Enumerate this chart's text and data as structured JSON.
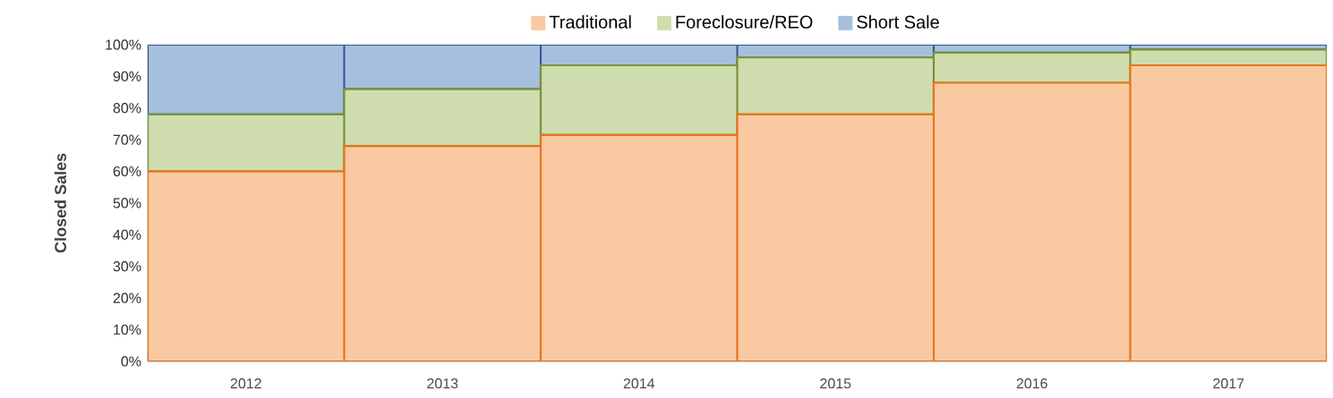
{
  "chart_data": {
    "type": "bar",
    "stacked": true,
    "ylabel": "Closed Sales",
    "categories": [
      "2012",
      "2013",
      "2014",
      "2015",
      "2016",
      "2017"
    ],
    "series": [
      {
        "name": "Traditional",
        "color": "#f9c9a2",
        "values": [
          60,
          68,
          71.5,
          78,
          88,
          93.5
        ]
      },
      {
        "name": "Foreclosure/REO",
        "color": "#cfddae",
        "values": [
          18,
          18,
          22,
          18,
          9.5,
          5
        ]
      },
      {
        "name": "Short Sale",
        "color": "#a7bfdf",
        "values": [
          22,
          14,
          6.5,
          4,
          2.5,
          1.5
        ]
      }
    ],
    "ylim": [
      0,
      100
    ],
    "yticks": [
      {
        "value": 0,
        "label": "0%"
      },
      {
        "value": 10,
        "label": "10%"
      },
      {
        "value": 20,
        "label": "20%"
      },
      {
        "value": 30,
        "label": "30%"
      },
      {
        "value": 40,
        "label": "40%"
      },
      {
        "value": 50,
        "label": "50%"
      },
      {
        "value": 60,
        "label": "60%"
      },
      {
        "value": 70,
        "label": "70%"
      },
      {
        "value": 80,
        "label": "80%"
      },
      {
        "value": 90,
        "label": "90%"
      },
      {
        "value": 100,
        "label": "100%"
      }
    ],
    "grid": "y",
    "legend": "top"
  }
}
